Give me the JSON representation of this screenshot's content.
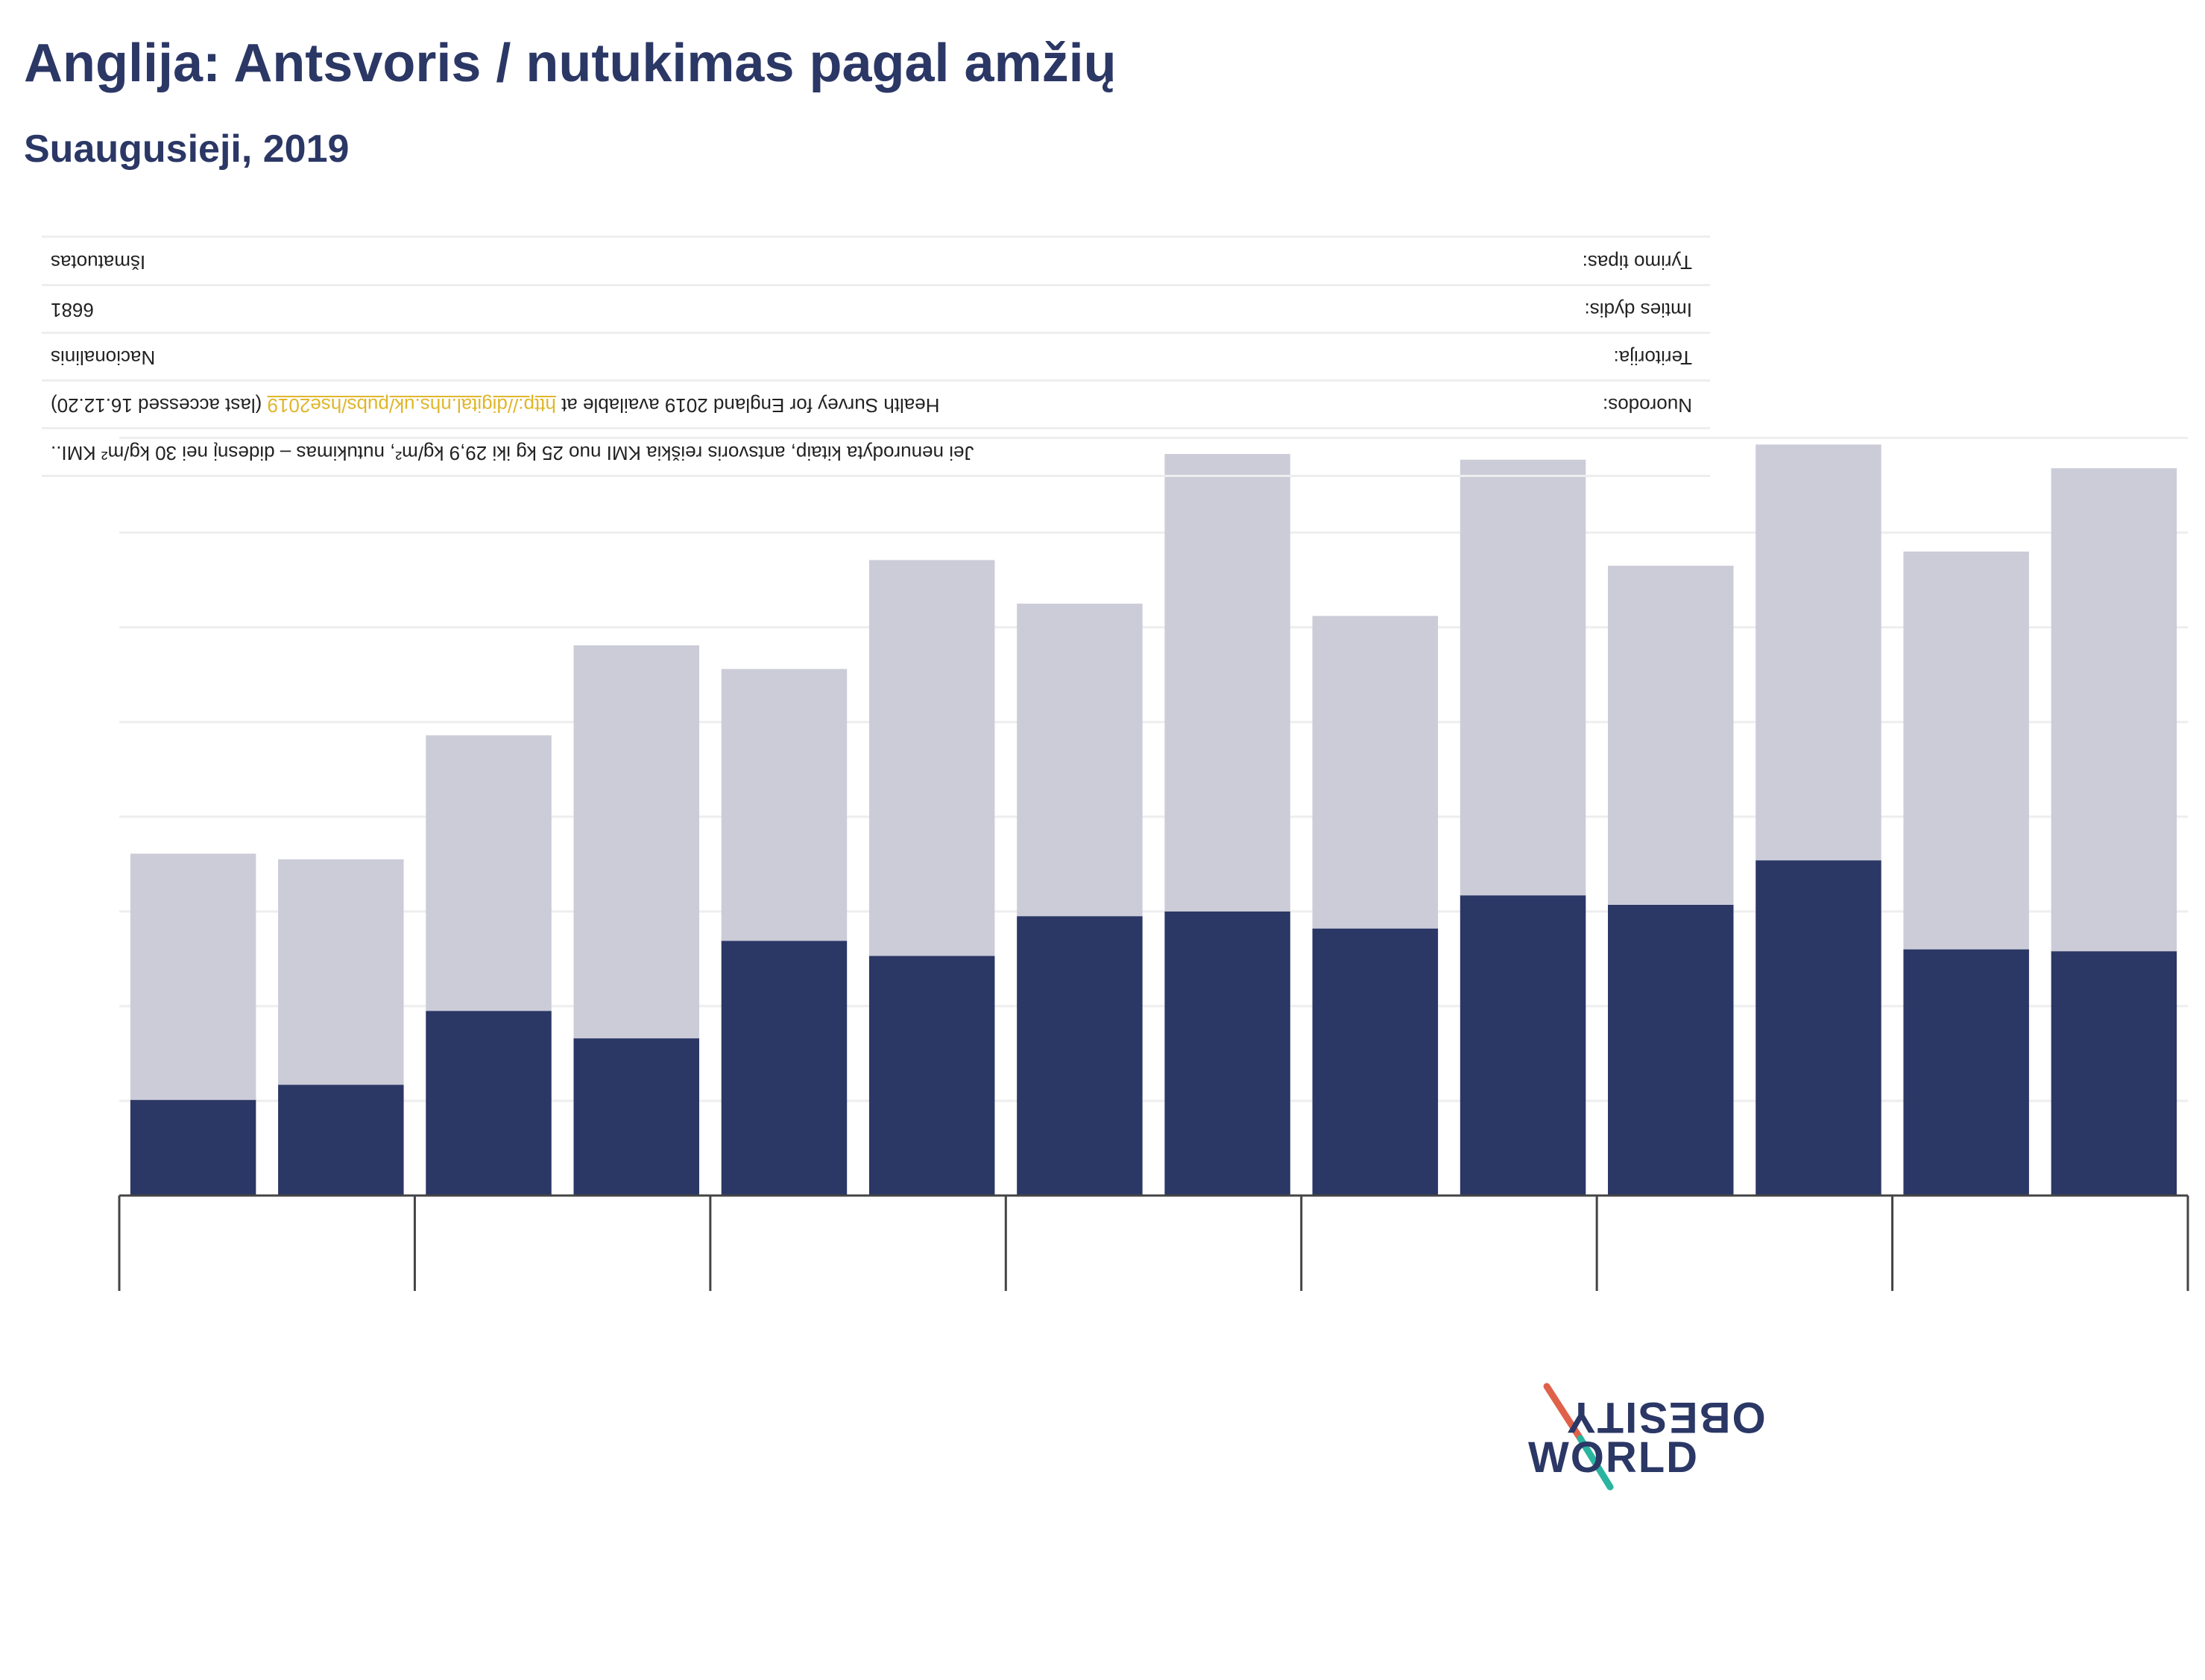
{
  "title": "Anglija: Antsvoris / nutukimas pagal amžių",
  "subtitle": "Suaugusieji, 2019",
  "colors": {
    "obesity": "#2b3765",
    "overweight": "#cbccd8",
    "text": "#2b3765",
    "link": "#e0b62a"
  },
  "chart_data": {
    "type": "bar",
    "stacked": true,
    "categories": [
      "",
      "",
      "",
      "",
      "",
      "",
      "",
      "",
      "",
      "",
      "",
      "",
      "",
      ""
    ],
    "series": [
      {
        "color": "#2b3765",
        "values": [
          10.1,
          11.7,
          19.5,
          16.6,
          26.9,
          25.3,
          29.5,
          30.0,
          28.2,
          31.7,
          30.7,
          35.4,
          26.0,
          25.8
        ]
      },
      {
        "color": "#cbccd8",
        "values": [
          26.0,
          23.8,
          29.1,
          41.5,
          28.7,
          41.8,
          33.0,
          48.3,
          33.0,
          46.0,
          35.8,
          43.9,
          42.0,
          51.0
        ]
      }
    ],
    "ylim": [
      0,
      85
    ],
    "grid": true,
    "legend": "none",
    "age_groups": 7
  },
  "footnotes": {
    "note": "Jei nenurodyta kitaip, antsvoris reiškia KMI nuo 25 kg iki 29,9 kg/m², nutukimas – didesnį nei 30 kg/m² KMI..",
    "references_label": "Nuorodos:",
    "references_text_before": "Health Survey for England 2019 available at ",
    "references_link": "http://digital.nhs.uk/pubs/hse2019",
    "references_text_after": " (last accessed 16.12.20)",
    "territory_label": "Teritorija:",
    "territory_value": "Nacionalinis",
    "sample_label": "Imties dydis:",
    "sample_value": "6681",
    "survey_label": "Tyrimo tipas:",
    "survey_value": "Išmatuotas"
  },
  "logo": {
    "line1": "OBESITY",
    "line2": "WORLD"
  }
}
